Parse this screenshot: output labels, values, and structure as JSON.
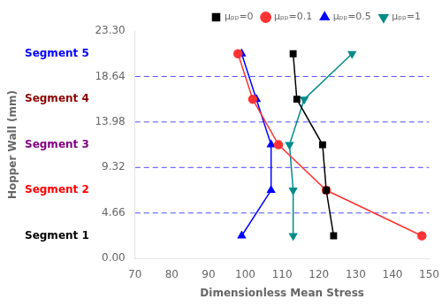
{
  "chart_data": {
    "type": "line",
    "xlabel": "Dimensionless Mean Stress",
    "ylabel": "Hopper Wall (mm)",
    "series": [
      {
        "name": "μₚₚ=0",
        "color": "black",
        "marker": "square",
        "x": [
          124,
          122,
          121,
          114,
          113
        ],
        "values": [
          2.33,
          6.99,
          11.65,
          16.31,
          20.97
        ]
      },
      {
        "name": "μₚₚ=0.1",
        "color": "#FF3333",
        "marker": "circle",
        "x": [
          148,
          122,
          109,
          102,
          98
        ],
        "values": [
          2.33,
          6.99,
          11.65,
          16.31,
          20.97
        ]
      },
      {
        "name": "μₚₚ=0.5",
        "color": "blue",
        "marker": "triangle_up",
        "x": [
          99,
          107,
          107,
          103,
          99
        ],
        "values": [
          2.33,
          6.99,
          11.65,
          16.31,
          20.97
        ]
      },
      {
        "name": "μₚₚ=1",
        "color": "#008B8B",
        "marker": "triangle_down",
        "x": [
          113,
          113,
          112,
          116,
          129
        ],
        "values": [
          2.33,
          6.99,
          11.65,
          16.31,
          20.97
        ]
      }
    ],
    "hlines": {
      "values": [
        4.66,
        9.32,
        13.98,
        18.64
      ],
      "color": "blue",
      "line_style": "dashed"
    },
    "annotations": [
      {
        "text": "Segment 1",
        "y": 2.33,
        "color": "black"
      },
      {
        "text": "Segment 2",
        "y": 6.99,
        "color": "red"
      },
      {
        "text": "Segment 3",
        "y": 11.65,
        "color": "purple"
      },
      {
        "text": "Segment 4",
        "y": 16.31,
        "color": "darkred"
      },
      {
        "text": "Segment 5",
        "y": 20.97,
        "color": "blue"
      }
    ],
    "xlim": [
      70,
      150
    ],
    "xticks": [
      70,
      80,
      90,
      100,
      110,
      120,
      130,
      140,
      150
    ],
    "ylim": [
      0.0,
      23.3
    ],
    "yticks": [
      {
        "value": 0.0,
        "label": "0.00"
      },
      4.66,
      9.32,
      13.98,
      18.64,
      {
        "value": 23.3,
        "label": "23.30"
      }
    ],
    "grid": false,
    "legend": "upper right"
  }
}
